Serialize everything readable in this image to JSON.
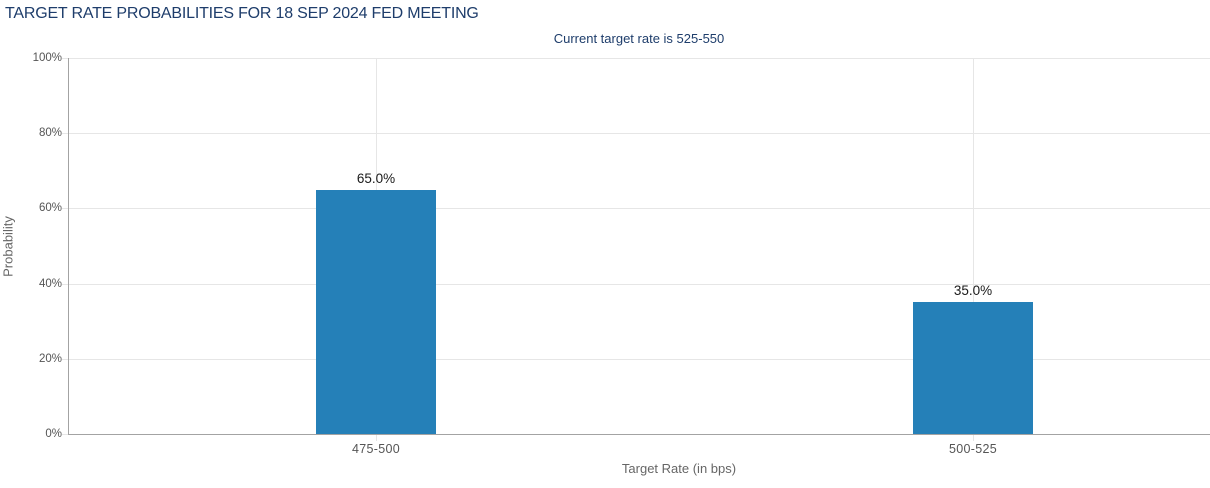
{
  "chart_data": {
    "type": "bar",
    "title": "TARGET RATE PROBABILITIES FOR 18 SEP 2024 FED MEETING",
    "subtitle": "Current target rate is 525-550",
    "xlabel": "Target Rate (in bps)",
    "ylabel": "Probability",
    "categories": [
      "475-500",
      "500-525"
    ],
    "values": [
      65.0,
      35.0
    ],
    "value_labels": [
      "65.0%",
      "35.0%"
    ],
    "ylim": [
      0,
      100
    ],
    "ytick_values": [
      0,
      20,
      40,
      60,
      80,
      100
    ],
    "ytick_labels": [
      "0%",
      "20%",
      "40%",
      "60%",
      "80%",
      "100%"
    ],
    "grid": true,
    "legend": "none"
  },
  "colors": {
    "bar": "#2580b8",
    "title": "#1e3d6b",
    "axis_title": "#666666",
    "tick_label": "#555555",
    "value_label": "#1a1a1a",
    "grid": "#e6e6e6",
    "axis_line": "#a3a3a3"
  }
}
